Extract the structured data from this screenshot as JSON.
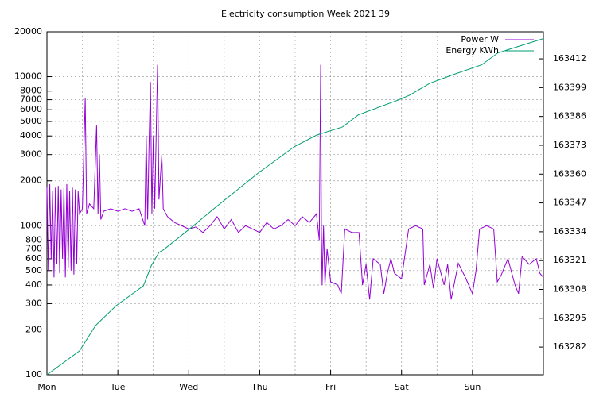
{
  "chart_data": {
    "type": "line",
    "title": "Electricity consumption Week 2021 39",
    "xlim": [
      0,
      7
    ],
    "xticks": [
      {
        "value": 0,
        "label": "Mon"
      },
      {
        "value": 1,
        "label": "Tue"
      },
      {
        "value": 2,
        "label": "Wed"
      },
      {
        "value": 3,
        "label": "Thu"
      },
      {
        "value": 4,
        "label": "Fri"
      },
      {
        "value": 5,
        "label": "Sat"
      },
      {
        "value": 6,
        "label": "Sun"
      }
    ],
    "ylim": [
      100,
      20000
    ],
    "yscale": "log",
    "yticks": [
      100,
      200,
      300,
      400,
      500,
      600,
      700,
      800,
      1000,
      2000,
      3000,
      4000,
      5000,
      6000,
      7000,
      8000,
      10000,
      20000
    ],
    "y2lim": [
      163269.5,
      163424.2
    ],
    "y2ticks": [
      163282,
      163295,
      163308,
      163321,
      163334,
      163347,
      163360,
      163373,
      163386,
      163399,
      163412
    ],
    "grid": true,
    "legend": "upper right",
    "series": [
      {
        "name": "Power W",
        "color": "#9400d3",
        "x": [
          0,
          0.02,
          0.04,
          0.06,
          0.08,
          0.1,
          0.12,
          0.14,
          0.16,
          0.18,
          0.2,
          0.22,
          0.24,
          0.26,
          0.28,
          0.3,
          0.32,
          0.34,
          0.36,
          0.38,
          0.4,
          0.42,
          0.44,
          0.46,
          0.5,
          0.54,
          0.56,
          0.6,
          0.66,
          0.7,
          0.72,
          0.74,
          0.76,
          0.8,
          0.9,
          1.0,
          1.1,
          1.2,
          1.3,
          1.38,
          1.4,
          1.42,
          1.44,
          1.46,
          1.48,
          1.5,
          1.52,
          1.56,
          1.58,
          1.62,
          1.64,
          1.7,
          1.8,
          1.9,
          2.0,
          2.1,
          2.2,
          2.3,
          2.4,
          2.5,
          2.6,
          2.7,
          2.8,
          2.9,
          3.0,
          3.1,
          3.2,
          3.3,
          3.4,
          3.5,
          3.6,
          3.7,
          3.8,
          3.84,
          3.86,
          3.87,
          3.88,
          3.9,
          3.92,
          3.95,
          4.0,
          4.1,
          4.15,
          4.2,
          4.3,
          4.4,
          4.45,
          4.5,
          4.55,
          4.6,
          4.7,
          4.75,
          4.8,
          4.85,
          4.9,
          5.0,
          5.1,
          5.2,
          5.3,
          5.32,
          5.4,
          5.45,
          5.5,
          5.6,
          5.65,
          5.7,
          5.8,
          5.9,
          6.0,
          6.05,
          6.1,
          6.2,
          6.3,
          6.35,
          6.4,
          6.5,
          6.6,
          6.65,
          6.7,
          6.8,
          6.9,
          6.95,
          7.0
        ],
        "values": [
          1800,
          500,
          1900,
          600,
          1700,
          450,
          1800,
          550,
          1850,
          480,
          1750,
          600,
          1800,
          450,
          1900,
          520,
          1700,
          500,
          1800,
          470,
          1750,
          550,
          1700,
          1200,
          1300,
          7200,
          1200,
          1400,
          1300,
          4700,
          1200,
          3000,
          1100,
          1250,
          1300,
          1250,
          1300,
          1250,
          1300,
          1000,
          4000,
          1100,
          3500,
          9200,
          1200,
          4000,
          1300,
          12000,
          1500,
          3000,
          1300,
          1150,
          1050,
          1000,
          950,
          980,
          900,
          1000,
          1150,
          950,
          1100,
          900,
          1000,
          950,
          900,
          1050,
          950,
          1000,
          1100,
          1000,
          1150,
          1050,
          1200,
          800,
          12000,
          900,
          400,
          1000,
          400,
          700,
          420,
          400,
          350,
          950,
          900,
          900,
          400,
          550,
          320,
          600,
          550,
          350,
          480,
          600,
          480,
          440,
          950,
          1000,
          950,
          400,
          550,
          380,
          600,
          400,
          550,
          320,
          560,
          450,
          350,
          500,
          950,
          1000,
          950,
          420,
          460,
          600,
          400,
          350,
          620,
          550,
          600,
          480,
          450
        ]
      },
      {
        "name": "Energy KWh",
        "color": "#009e73",
        "axis": "y2",
        "x": [
          0,
          0.46,
          0.685,
          0.978,
          1.36,
          1.47,
          1.58,
          1.64,
          1.99,
          2.37,
          2.98,
          3.49,
          3.81,
          4.17,
          4.39,
          4.96,
          5.12,
          5.4,
          5.74,
          6.13,
          6.36,
          7.0
        ],
        "values": [
          163269.5,
          163280.3,
          163291.7,
          163300.7,
          163309.6,
          163318.6,
          163324.7,
          163325.8,
          163334.7,
          163344.8,
          163360.5,
          163372.4,
          163377.7,
          163381.3,
          163386.7,
          163393.5,
          163395.7,
          163401.0,
          163405.0,
          163409.3,
          163414.7,
          163421.1
        ]
      }
    ]
  }
}
